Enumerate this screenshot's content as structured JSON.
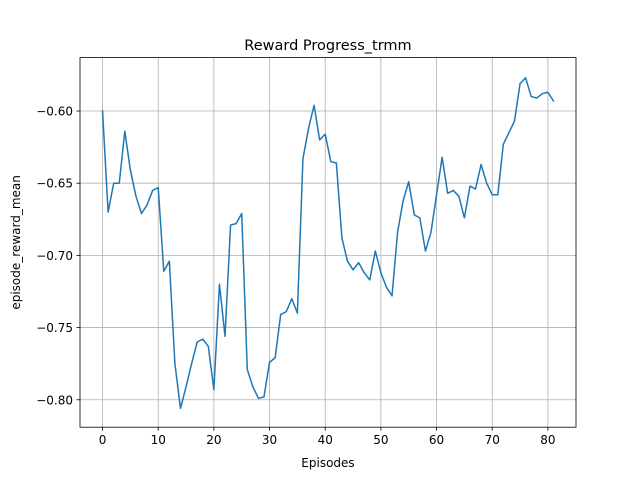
{
  "chart_data": {
    "type": "line",
    "title": "Reward Progress_trmm",
    "xlabel": "Episodes",
    "ylabel": "episode_reward_mean",
    "xlim": [
      -4.05,
      85.05
    ],
    "ylim": [
      -0.819,
      -0.563
    ],
    "xticks": [
      0,
      10,
      20,
      30,
      40,
      50,
      60,
      70,
      80
    ],
    "yticks": [
      -0.8,
      -0.75,
      -0.7,
      -0.65,
      -0.6
    ],
    "xtick_labels": [
      "0",
      "10",
      "20",
      "30",
      "40",
      "50",
      "60",
      "70",
      "80"
    ],
    "ytick_labels": [
      "−0.80",
      "−0.75",
      "−0.70",
      "−0.65",
      "−0.60"
    ],
    "grid": true,
    "series": [
      {
        "color": "#1f77b4",
        "x": [
          0,
          1,
          2,
          3,
          4,
          5,
          6,
          7,
          8,
          9,
          10,
          11,
          12,
          13,
          14,
          15,
          16,
          17,
          18,
          19,
          20,
          21,
          22,
          23,
          24,
          25,
          26,
          27,
          28,
          29,
          30,
          31,
          32,
          33,
          34,
          35,
          36,
          37,
          38,
          39,
          40,
          41,
          42,
          43,
          44,
          45,
          46,
          47,
          48,
          49,
          50,
          51,
          52,
          53,
          54,
          55,
          56,
          57,
          58,
          59,
          60,
          61,
          62,
          63,
          64,
          65,
          66,
          67,
          68,
          69,
          70,
          71,
          72,
          73,
          74,
          75,
          76,
          77,
          78,
          79,
          80,
          81
        ],
        "values": [
          -0.6,
          -0.67,
          -0.65,
          -0.65,
          -0.614,
          -0.641,
          -0.659,
          -0.671,
          -0.665,
          -0.655,
          -0.653,
          -0.711,
          -0.704,
          -0.775,
          -0.806,
          -0.791,
          -0.775,
          -0.76,
          -0.758,
          -0.763,
          -0.793,
          -0.72,
          -0.756,
          -0.679,
          -0.678,
          -0.671,
          -0.779,
          -0.791,
          -0.799,
          -0.798,
          -0.774,
          -0.771,
          -0.741,
          -0.739,
          -0.73,
          -0.74,
          -0.633,
          -0.612,
          -0.596,
          -0.62,
          -0.616,
          -0.635,
          -0.636,
          -0.688,
          -0.704,
          -0.71,
          -0.705,
          -0.712,
          -0.717,
          -0.697,
          -0.712,
          -0.722,
          -0.728,
          -0.684,
          -0.662,
          -0.649,
          -0.672,
          -0.674,
          -0.697,
          -0.684,
          -0.658,
          -0.632,
          -0.657,
          -0.655,
          -0.659,
          -0.674,
          -0.652,
          -0.654,
          -0.637,
          -0.65,
          -0.658,
          -0.658,
          -0.623,
          -0.615,
          -0.607,
          -0.581,
          -0.577,
          -0.59,
          -0.591,
          -0.588,
          -0.587,
          -0.593
        ]
      }
    ]
  }
}
